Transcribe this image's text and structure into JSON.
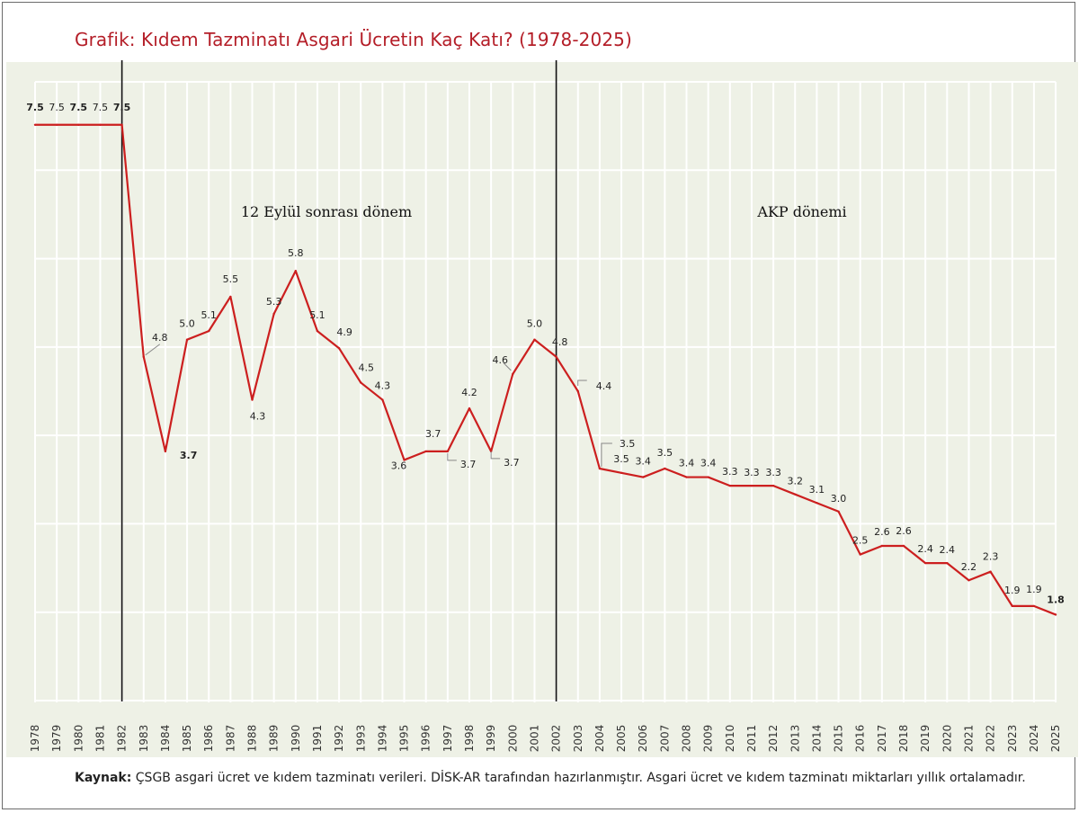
{
  "title": "Grafik: Kıdem Tazminatı Asgari Ücretin Kaç Katı? (1978-2025)",
  "source": {
    "label": "Kaynak:",
    "text": "ÇSGB asgari ücret ve kıdem tazminatı verileri. DİSK-AR tarafından hazırlanmıştır. Asgari ücret ve kıdem tazminatı miktarları yıllık ortalamadır."
  },
  "colors": {
    "line": "#cc1f1f",
    "title": "#b41e28",
    "plot_bg": "#eef1e6",
    "grid": "#ffffff"
  },
  "chart_data": {
    "type": "line",
    "title": "Grafik: Kıdem Tazminatı Asgari Ücretin Kaç Katı? (1978-2025)",
    "xlabel": "",
    "ylabel": "",
    "ylim": [
      0.8,
      8.0
    ],
    "grid": true,
    "legend": "none",
    "categories": [
      "1978",
      "1979",
      "1980",
      "1981",
      "1982",
      "1983",
      "1984",
      "1985",
      "1986",
      "1987",
      "1988",
      "1989",
      "1990",
      "1991",
      "1992",
      "1993",
      "1994",
      "1995",
      "1996",
      "1997",
      "1998",
      "1999",
      "2000",
      "2001",
      "2002",
      "2003",
      "2004",
      "2005",
      "2006",
      "2007",
      "2008",
      "2009",
      "2010",
      "2011",
      "2012",
      "2013",
      "2014",
      "2015",
      "2016",
      "2017",
      "2018",
      "2019",
      "2020",
      "2021",
      "2022",
      "2023",
      "2024",
      "2025"
    ],
    "values": [
      7.5,
      7.5,
      7.5,
      7.5,
      7.5,
      4.8,
      3.7,
      5.0,
      5.1,
      5.5,
      4.3,
      5.3,
      5.8,
      5.1,
      4.9,
      4.5,
      4.3,
      3.6,
      3.7,
      3.7,
      4.2,
      3.7,
      4.6,
      5.0,
      4.8,
      4.4,
      3.5,
      3.45,
      3.4,
      3.5,
      3.4,
      3.4,
      3.3,
      3.3,
      3.3,
      3.2,
      3.1,
      3.0,
      2.5,
      2.6,
      2.6,
      2.4,
      2.4,
      2.2,
      2.3,
      1.9,
      1.9,
      1.8
    ],
    "data_labels": [
      "7.5",
      "7.5",
      "7.5",
      "7.5",
      "7.5",
      "4.8",
      "3.7",
      "5.0",
      "5.1",
      "5.5",
      "4.3",
      "5.3",
      "5.8",
      "5.1",
      "4.9",
      "4.5",
      "4.3",
      "3.6",
      "3.7",
      "3.7",
      "4.2",
      "3.7",
      "4.6",
      "5.0",
      "4.8",
      "4.4",
      "3.5",
      "3.5",
      "3.4",
      "3.5",
      "3.4",
      "3.4",
      "3.3",
      "3.3",
      "3.3",
      "3.2",
      "3.1",
      "3.0",
      "2.5",
      "2.6",
      "2.6",
      "2.4",
      "2.4",
      "2.2",
      "2.3",
      "1.9",
      "1.9",
      "1.8"
    ],
    "annotations": [
      {
        "text": "12 Eylül sonrası dönem",
        "after_year": "1982"
      },
      {
        "text": "AKP dönemi",
        "after_year": "2002"
      }
    ],
    "period_lines": [
      "1982",
      "2002"
    ]
  }
}
